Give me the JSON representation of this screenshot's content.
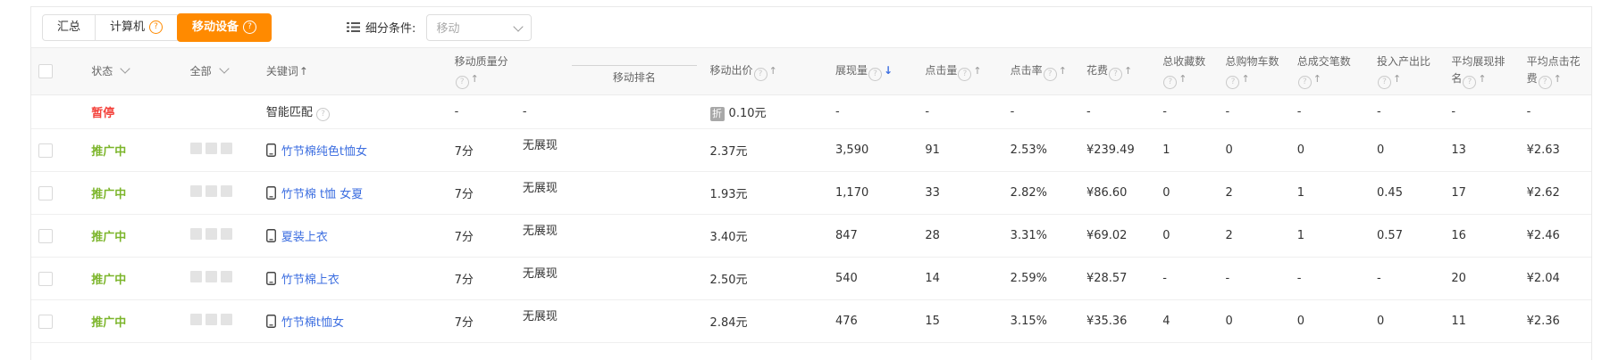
{
  "toolbar": {
    "tabs": [
      {
        "label": "汇总",
        "active": false,
        "help": false
      },
      {
        "label": "计算机",
        "active": false,
        "help": true
      },
      {
        "label": "移动设备",
        "active": true,
        "help": true
      }
    ],
    "filter_label": "细分条件:",
    "filter_value": "移动"
  },
  "table": {
    "columns": [
      {
        "id": "select",
        "kind": "check",
        "label": ""
      },
      {
        "id": "status",
        "kind": "dropdown",
        "label": "状态"
      },
      {
        "id": "scope",
        "kind": "dropdown",
        "label": "全部"
      },
      {
        "id": "keyword",
        "kind": "keyword",
        "label": "关键词"
      },
      {
        "id": "quality",
        "kind": "metric",
        "label": "移动质量分",
        "help": true,
        "sort": "up"
      },
      {
        "id": "rank",
        "kind": "subline",
        "label": "移动排名"
      },
      {
        "id": "bid",
        "kind": "metric",
        "label": "移动出价",
        "help": true,
        "sort": "up"
      },
      {
        "id": "impressions",
        "kind": "metric",
        "label": "展现量",
        "help": true,
        "sort": "down",
        "sorted": true
      },
      {
        "id": "clicks",
        "kind": "metric",
        "label": "点击量",
        "help": true,
        "sort": "up"
      },
      {
        "id": "ctr",
        "kind": "metric",
        "label": "点击率",
        "help": true,
        "sort": "up"
      },
      {
        "id": "cost",
        "kind": "metric",
        "label": "花费",
        "help": true,
        "sort": "up"
      },
      {
        "id": "favorites",
        "kind": "metric",
        "label": "总收藏数",
        "help": true,
        "sort": "up"
      },
      {
        "id": "carts",
        "kind": "metric",
        "label": "总购物车数",
        "help": true,
        "sort": "up"
      },
      {
        "id": "orders",
        "kind": "metric",
        "label": "总成交笔数",
        "help": true,
        "sort": "up"
      },
      {
        "id": "roi",
        "kind": "metric",
        "label": "投入产出比",
        "help": true,
        "sort": "up"
      },
      {
        "id": "avg_rank",
        "kind": "metric",
        "label": "平均展现排名",
        "help": true,
        "sort": "up"
      },
      {
        "id": "avg_cpc",
        "kind": "metric",
        "label": "平均点击花费",
        "help": true,
        "sort": "up"
      }
    ],
    "rows": [
      {
        "type": "paused",
        "status": "暂停",
        "keyword": "智能匹配",
        "keyword_help": true,
        "quality": "-",
        "rank": "-",
        "bid": "0.10元",
        "bid_badge": "折",
        "impressions": "-",
        "clicks": "-",
        "ctr": "-",
        "cost": "-",
        "favorites": "-",
        "carts": "-",
        "orders": "-",
        "roi": "-",
        "avg_rank": "-",
        "avg_cpc": "-"
      },
      {
        "type": "active",
        "status": "推广中",
        "keyword": "竹节棉纯色t恤女",
        "quality": "7分",
        "rank": "无展现",
        "bid": "2.37元",
        "impressions": "3,590",
        "clicks": "91",
        "ctr": "2.53%",
        "cost": "¥239.49",
        "favorites": "1",
        "carts": "0",
        "orders": "0",
        "roi": "0",
        "avg_rank": "13",
        "avg_cpc": "¥2.63"
      },
      {
        "type": "active",
        "status": "推广中",
        "keyword": "竹节棉 t恤 女夏",
        "quality": "7分",
        "rank": "无展现",
        "bid": "1.93元",
        "impressions": "1,170",
        "clicks": "33",
        "ctr": "2.82%",
        "cost": "¥86.60",
        "favorites": "0",
        "carts": "2",
        "orders": "1",
        "roi": "0.45",
        "avg_rank": "17",
        "avg_cpc": "¥2.62"
      },
      {
        "type": "active",
        "status": "推广中",
        "keyword": "夏装上衣",
        "quality": "7分",
        "rank": "无展现",
        "bid": "3.40元",
        "impressions": "847",
        "clicks": "28",
        "ctr": "3.31%",
        "cost": "¥69.02",
        "favorites": "0",
        "carts": "2",
        "orders": "1",
        "roi": "0.57",
        "avg_rank": "16",
        "avg_cpc": "¥2.46"
      },
      {
        "type": "active",
        "status": "推广中",
        "keyword": "竹节棉上衣",
        "quality": "7分",
        "rank": "无展现",
        "bid": "2.50元",
        "impressions": "540",
        "clicks": "14",
        "ctr": "2.59%",
        "cost": "¥28.57",
        "favorites": "-",
        "carts": "-",
        "orders": "-",
        "roi": "-",
        "avg_rank": "20",
        "avg_cpc": "¥2.04"
      },
      {
        "type": "active",
        "status": "推广中",
        "keyword": "竹节棉t恤女",
        "quality": "7分",
        "rank": "无展现",
        "bid": "2.84元",
        "impressions": "476",
        "clicks": "15",
        "ctr": "3.15%",
        "cost": "¥35.36",
        "favorites": "4",
        "carts": "0",
        "orders": "0",
        "roi": "0",
        "avg_rank": "11",
        "avg_cpc": "¥2.36"
      }
    ]
  },
  "colors": {
    "accent_orange": "#ff8a00",
    "status_green": "#7cb52b",
    "status_red": "#f4433c",
    "link_blue": "#3c6ee0",
    "sort_active_blue": "#3c6ee0"
  }
}
